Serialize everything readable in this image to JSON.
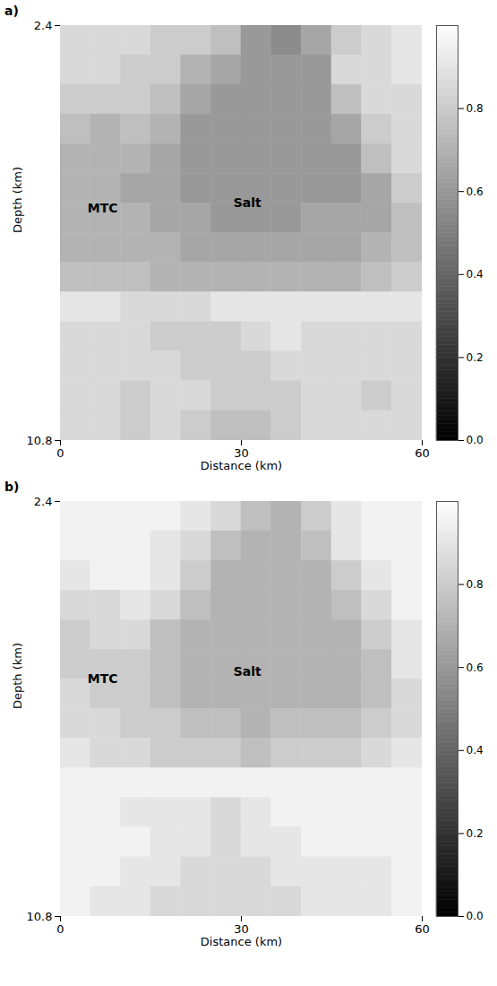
{
  "chart_data": [
    {
      "type": "heatmap",
      "title": "a)",
      "x_label": "Distance (km)",
      "y_label": "Depth (km)",
      "xlim": [
        0,
        60
      ],
      "xticks": [
        0,
        30,
        60
      ],
      "ylim": [
        2.4,
        10.8
      ],
      "yticks": [
        2.4,
        10.8
      ],
      "color": "gray",
      "x": [
        2.5,
        7.5,
        12.5,
        17.5,
        22.5,
        27.5,
        32.5,
        37.5,
        42.5,
        47.5,
        52.5,
        57.5
      ],
      "y": [
        2.7,
        3.3,
        3.9,
        4.5,
        5.1,
        5.7,
        6.3,
        6.9,
        7.5,
        8.1,
        8.7,
        9.3,
        9.9,
        10.5
      ],
      "cells": [
        [
          0.85,
          0.85,
          0.85,
          0.8,
          0.8,
          0.75,
          0.6,
          0.55,
          0.65,
          0.8,
          0.85,
          0.9
        ],
        [
          0.85,
          0.85,
          0.8,
          0.8,
          0.7,
          0.65,
          0.6,
          0.6,
          0.6,
          0.85,
          0.85,
          0.9
        ],
        [
          0.8,
          0.8,
          0.8,
          0.75,
          0.65,
          0.6,
          0.6,
          0.6,
          0.6,
          0.75,
          0.85,
          0.85
        ],
        [
          0.75,
          0.7,
          0.75,
          0.7,
          0.6,
          0.6,
          0.6,
          0.6,
          0.6,
          0.65,
          0.8,
          0.85
        ],
        [
          0.7,
          0.7,
          0.7,
          0.65,
          0.6,
          0.6,
          0.6,
          0.6,
          0.6,
          0.6,
          0.75,
          0.85
        ],
        [
          0.7,
          0.7,
          0.65,
          0.65,
          0.6,
          0.6,
          0.6,
          0.6,
          0.6,
          0.6,
          0.65,
          0.8
        ],
        [
          0.7,
          0.7,
          0.7,
          0.65,
          0.65,
          0.6,
          0.6,
          0.6,
          0.65,
          0.65,
          0.65,
          0.75
        ],
        [
          0.7,
          0.7,
          0.7,
          0.7,
          0.65,
          0.65,
          0.65,
          0.65,
          0.65,
          0.65,
          0.7,
          0.75
        ],
        [
          0.75,
          0.75,
          0.75,
          0.7,
          0.7,
          0.7,
          0.7,
          0.7,
          0.7,
          0.7,
          0.75,
          0.8
        ],
        [
          0.9,
          0.9,
          0.85,
          0.85,
          0.85,
          0.9,
          0.9,
          0.9,
          0.9,
          0.9,
          0.9,
          0.9
        ],
        [
          0.85,
          0.85,
          0.85,
          0.8,
          0.8,
          0.8,
          0.85,
          0.9,
          0.85,
          0.85,
          0.85,
          0.85
        ],
        [
          0.85,
          0.85,
          0.85,
          0.85,
          0.8,
          0.8,
          0.8,
          0.85,
          0.85,
          0.85,
          0.85,
          0.85
        ],
        [
          0.85,
          0.85,
          0.8,
          0.85,
          0.85,
          0.8,
          0.8,
          0.8,
          0.85,
          0.85,
          0.8,
          0.85
        ],
        [
          0.85,
          0.85,
          0.8,
          0.85,
          0.8,
          0.75,
          0.75,
          0.8,
          0.85,
          0.85,
          0.85,
          0.85
        ]
      ],
      "colorbar_range": [
        0,
        1
      ],
      "colorbar_ticks": [
        {
          "value": 0,
          "label": "0.0"
        },
        0.2,
        0.4,
        0.6,
        0.8
      ],
      "annotations": [
        {
          "text": "MTC",
          "x": 7,
          "y": 6.1
        },
        {
          "text": "Salt",
          "x": 31,
          "y": 6.0
        }
      ]
    },
    {
      "type": "heatmap",
      "title": "b)",
      "x_label": "Distance (km)",
      "y_label": "Depth (km)",
      "xlim": [
        0,
        60
      ],
      "xticks": [
        0,
        30,
        60
      ],
      "ylim": [
        2.4,
        10.8
      ],
      "yticks": [
        2.4,
        10.8
      ],
      "color": "gray",
      "x": [
        2.5,
        7.5,
        12.5,
        17.5,
        22.5,
        27.5,
        32.5,
        37.5,
        42.5,
        47.5,
        52.5,
        57.5
      ],
      "y": [
        2.7,
        3.3,
        3.9,
        4.5,
        5.1,
        5.7,
        6.3,
        6.9,
        7.5,
        8.1,
        8.7,
        9.3,
        9.9,
        10.5
      ],
      "cells": [
        [
          0.95,
          0.95,
          0.95,
          0.95,
          0.9,
          0.85,
          0.75,
          0.7,
          0.8,
          0.9,
          0.95,
          0.95
        ],
        [
          0.95,
          0.95,
          0.95,
          0.9,
          0.85,
          0.75,
          0.7,
          0.7,
          0.75,
          0.9,
          0.95,
          0.95
        ],
        [
          0.9,
          0.95,
          0.95,
          0.9,
          0.8,
          0.7,
          0.7,
          0.7,
          0.7,
          0.8,
          0.9,
          0.95
        ],
        [
          0.85,
          0.85,
          0.9,
          0.85,
          0.75,
          0.7,
          0.7,
          0.7,
          0.7,
          0.75,
          0.85,
          0.95
        ],
        [
          0.8,
          0.85,
          0.85,
          0.75,
          0.7,
          0.7,
          0.7,
          0.7,
          0.7,
          0.7,
          0.8,
          0.9
        ],
        [
          0.8,
          0.8,
          0.8,
          0.75,
          0.7,
          0.7,
          0.7,
          0.7,
          0.7,
          0.7,
          0.75,
          0.9
        ],
        [
          0.85,
          0.8,
          0.8,
          0.75,
          0.7,
          0.7,
          0.7,
          0.7,
          0.7,
          0.7,
          0.75,
          0.85
        ],
        [
          0.85,
          0.85,
          0.8,
          0.8,
          0.75,
          0.75,
          0.7,
          0.75,
          0.75,
          0.75,
          0.8,
          0.85
        ],
        [
          0.9,
          0.85,
          0.85,
          0.8,
          0.8,
          0.8,
          0.75,
          0.8,
          0.8,
          0.8,
          0.85,
          0.9
        ],
        [
          0.95,
          0.95,
          0.95,
          0.95,
          0.95,
          0.95,
          0.95,
          0.95,
          0.95,
          0.95,
          0.95,
          0.95
        ],
        [
          0.95,
          0.95,
          0.9,
          0.9,
          0.9,
          0.85,
          0.9,
          0.95,
          0.95,
          0.95,
          0.95,
          0.95
        ],
        [
          0.95,
          0.95,
          0.95,
          0.9,
          0.9,
          0.85,
          0.9,
          0.9,
          0.95,
          0.95,
          0.95,
          0.95
        ],
        [
          0.95,
          0.95,
          0.9,
          0.9,
          0.85,
          0.85,
          0.85,
          0.9,
          0.9,
          0.9,
          0.9,
          0.95
        ],
        [
          0.95,
          0.9,
          0.9,
          0.85,
          0.85,
          0.85,
          0.85,
          0.85,
          0.9,
          0.9,
          0.9,
          0.95
        ]
      ],
      "colorbar_range": [
        0,
        1
      ],
      "colorbar_ticks": [
        {
          "value": 0,
          "label": "0.0"
        },
        0.2,
        0.4,
        0.6,
        0.8
      ],
      "annotations": [
        {
          "text": "MTC",
          "x": 7,
          "y": 6.0
        },
        {
          "text": "Salt",
          "x": 31,
          "y": 5.85
        }
      ]
    }
  ]
}
